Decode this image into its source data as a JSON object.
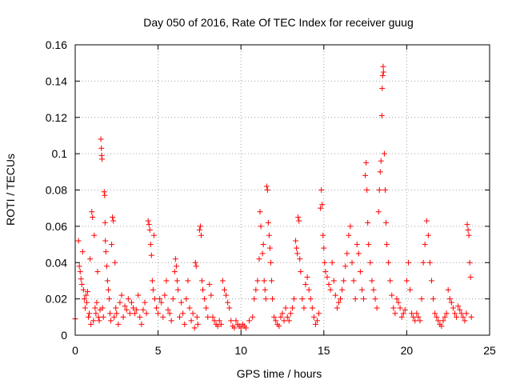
{
  "chart_data": {
    "type": "scatter",
    "title": "Day 050 of 2016, Rate Of TEC Index for receiver guug",
    "xlabel": "GPS time / hours",
    "ylabel": "ROTI / TECUs",
    "xlim": [
      0,
      25
    ],
    "ylim": [
      0,
      0.16
    ],
    "xticks": [
      0,
      5,
      10,
      15,
      20,
      25
    ],
    "xtick_labels": [
      "0",
      "5",
      "10",
      "15",
      "20",
      "25"
    ],
    "yticks": [
      0,
      0.02,
      0.04,
      0.06,
      0.08,
      0.1,
      0.12,
      0.14,
      0.16
    ],
    "ytick_labels": [
      "0",
      "0.02",
      "0.04",
      "0.06",
      "0.08",
      "0.1",
      "0.12",
      "0.14",
      "0.16"
    ],
    "grid": true,
    "marker": "+",
    "color": "#ff0000",
    "series": [
      {
        "name": "ROTI",
        "points": [
          [
            0.0,
            0.009
          ],
          [
            0.2,
            0.052
          ],
          [
            0.25,
            0.038
          ],
          [
            0.3,
            0.035
          ],
          [
            0.35,
            0.031
          ],
          [
            0.4,
            0.028
          ],
          [
            0.45,
            0.046
          ],
          [
            0.5,
            0.025
          ],
          [
            0.55,
            0.02
          ],
          [
            0.6,
            0.015
          ],
          [
            0.65,
            0.022
          ],
          [
            0.7,
            0.018
          ],
          [
            0.75,
            0.024
          ],
          [
            0.8,
            0.01
          ],
          [
            0.85,
            0.012
          ],
          [
            0.9,
            0.042
          ],
          [
            0.95,
            0.006
          ],
          [
            1.0,
            0.068
          ],
          [
            1.05,
            0.065
          ],
          [
            1.1,
            0.008
          ],
          [
            1.15,
            0.055
          ],
          [
            1.2,
            0.015
          ],
          [
            1.25,
            0.012
          ],
          [
            1.3,
            0.018
          ],
          [
            1.35,
            0.035
          ],
          [
            1.4,
            0.01
          ],
          [
            1.45,
            0.008
          ],
          [
            1.5,
            0.014
          ],
          [
            1.55,
            0.108
          ],
          [
            1.58,
            0.103
          ],
          [
            1.6,
            0.099
          ],
          [
            1.62,
            0.097
          ],
          [
            1.65,
            0.015
          ],
          [
            1.7,
            0.01
          ],
          [
            1.75,
            0.079
          ],
          [
            1.78,
            0.077
          ],
          [
            1.8,
            0.062
          ],
          [
            1.82,
            0.052
          ],
          [
            1.85,
            0.046
          ],
          [
            1.9,
            0.038
          ],
          [
            1.95,
            0.03
          ],
          [
            2.0,
            0.025
          ],
          [
            2.05,
            0.02
          ],
          [
            2.1,
            0.012
          ],
          [
            2.15,
            0.008
          ],
          [
            2.2,
            0.05
          ],
          [
            2.25,
            0.065
          ],
          [
            2.3,
            0.063
          ],
          [
            2.35,
            0.01
          ],
          [
            2.4,
            0.04
          ],
          [
            2.45,
            0.015
          ],
          [
            2.5,
            0.012
          ],
          [
            2.6,
            0.006
          ],
          [
            2.7,
            0.018
          ],
          [
            2.8,
            0.022
          ],
          [
            2.9,
            0.01
          ],
          [
            3.0,
            0.016
          ],
          [
            3.1,
            0.014
          ],
          [
            3.2,
            0.02
          ],
          [
            3.3,
            0.012
          ],
          [
            3.4,
            0.018
          ],
          [
            3.5,
            0.015
          ],
          [
            3.6,
            0.012
          ],
          [
            3.7,
            0.014
          ],
          [
            3.8,
            0.022
          ],
          [
            3.9,
            0.01
          ],
          [
            4.0,
            0.006
          ],
          [
            4.1,
            0.014
          ],
          [
            4.2,
            0.018
          ],
          [
            4.3,
            0.012
          ],
          [
            4.4,
            0.063
          ],
          [
            4.45,
            0.061
          ],
          [
            4.5,
            0.058
          ],
          [
            4.55,
            0.05
          ],
          [
            4.6,
            0.044
          ],
          [
            4.65,
            0.03
          ],
          [
            4.7,
            0.025
          ],
          [
            4.75,
            0.055
          ],
          [
            4.8,
            0.02
          ],
          [
            4.9,
            0.015
          ],
          [
            5.0,
            0.012
          ],
          [
            5.1,
            0.02
          ],
          [
            5.2,
            0.018
          ],
          [
            5.3,
            0.01
          ],
          [
            5.4,
            0.022
          ],
          [
            5.5,
            0.03
          ],
          [
            5.6,
            0.014
          ],
          [
            5.7,
            0.012
          ],
          [
            5.8,
            0.008
          ],
          [
            5.9,
            0.02
          ],
          [
            6.0,
            0.035
          ],
          [
            6.05,
            0.042
          ],
          [
            6.1,
            0.038
          ],
          [
            6.15,
            0.03
          ],
          [
            6.2,
            0.025
          ],
          [
            6.3,
            0.01
          ],
          [
            6.4,
            0.018
          ],
          [
            6.5,
            0.012
          ],
          [
            6.6,
            0.006
          ],
          [
            6.7,
            0.02
          ],
          [
            6.8,
            0.03
          ],
          [
            6.9,
            0.015
          ],
          [
            7.0,
            0.008
          ],
          [
            7.1,
            0.012
          ],
          [
            7.2,
            0.004
          ],
          [
            7.25,
            0.04
          ],
          [
            7.3,
            0.038
          ],
          [
            7.35,
            0.01
          ],
          [
            7.4,
            0.006
          ],
          [
            7.5,
            0.058
          ],
          [
            7.55,
            0.06
          ],
          [
            7.6,
            0.055
          ],
          [
            7.65,
            0.03
          ],
          [
            7.7,
            0.025
          ],
          [
            7.8,
            0.02
          ],
          [
            7.9,
            0.015
          ],
          [
            8.0,
            0.01
          ],
          [
            8.1,
            0.028
          ],
          [
            8.2,
            0.022
          ],
          [
            8.3,
            0.01
          ],
          [
            8.4,
            0.008
          ],
          [
            8.5,
            0.006
          ],
          [
            8.6,
            0.005
          ],
          [
            8.7,
            0.008
          ],
          [
            8.8,
            0.006
          ],
          [
            8.9,
            0.03
          ],
          [
            9.0,
            0.025
          ],
          [
            9.1,
            0.022
          ],
          [
            9.2,
            0.018
          ],
          [
            9.3,
            0.015
          ],
          [
            9.4,
            0.008
          ],
          [
            9.5,
            0.005
          ],
          [
            9.6,
            0.004
          ],
          [
            9.7,
            0.008
          ],
          [
            9.8,
            0.006
          ],
          [
            9.9,
            0.005
          ],
          [
            10.0,
            0.004
          ],
          [
            10.1,
            0.006
          ],
          [
            10.2,
            0.005
          ],
          [
            10.3,
            0.004
          ],
          [
            10.5,
            0.008
          ],
          [
            10.7,
            0.01
          ],
          [
            10.8,
            0.02
          ],
          [
            10.9,
            0.025
          ],
          [
            11.0,
            0.03
          ],
          [
            11.1,
            0.042
          ],
          [
            11.15,
            0.068
          ],
          [
            11.2,
            0.06
          ],
          [
            11.3,
            0.045
          ],
          [
            11.35,
            0.05
          ],
          [
            11.4,
            0.03
          ],
          [
            11.45,
            0.025
          ],
          [
            11.5,
            0.02
          ],
          [
            11.55,
            0.082
          ],
          [
            11.6,
            0.08
          ],
          [
            11.65,
            0.062
          ],
          [
            11.7,
            0.055
          ],
          [
            11.75,
            0.048
          ],
          [
            11.8,
            0.04
          ],
          [
            11.85,
            0.03
          ],
          [
            11.9,
            0.02
          ],
          [
            12.0,
            0.01
          ],
          [
            12.1,
            0.008
          ],
          [
            12.2,
            0.006
          ],
          [
            12.3,
            0.005
          ],
          [
            12.4,
            0.01
          ],
          [
            12.5,
            0.012
          ],
          [
            12.6,
            0.008
          ],
          [
            12.7,
            0.015
          ],
          [
            12.8,
            0.01
          ],
          [
            12.9,
            0.008
          ],
          [
            13.0,
            0.012
          ],
          [
            13.1,
            0.015
          ],
          [
            13.2,
            0.02
          ],
          [
            13.3,
            0.052
          ],
          [
            13.35,
            0.048
          ],
          [
            13.4,
            0.045
          ],
          [
            13.45,
            0.065
          ],
          [
            13.5,
            0.063
          ],
          [
            13.55,
            0.042
          ],
          [
            13.6,
            0.035
          ],
          [
            13.7,
            0.02
          ],
          [
            13.8,
            0.015
          ],
          [
            13.9,
            0.028
          ],
          [
            14.0,
            0.032
          ],
          [
            14.1,
            0.025
          ],
          [
            14.2,
            0.02
          ],
          [
            14.3,
            0.015
          ],
          [
            14.4,
            0.01
          ],
          [
            14.5,
            0.006
          ],
          [
            14.6,
            0.008
          ],
          [
            14.7,
            0.012
          ],
          [
            14.8,
            0.07
          ],
          [
            14.85,
            0.08
          ],
          [
            14.9,
            0.072
          ],
          [
            14.95,
            0.055
          ],
          [
            15.0,
            0.048
          ],
          [
            15.05,
            0.04
          ],
          [
            15.1,
            0.035
          ],
          [
            15.2,
            0.032
          ],
          [
            15.3,
            0.028
          ],
          [
            15.4,
            0.025
          ],
          [
            15.5,
            0.04
          ],
          [
            15.6,
            0.03
          ],
          [
            15.7,
            0.022
          ],
          [
            15.8,
            0.015
          ],
          [
            15.9,
            0.018
          ],
          [
            16.0,
            0.02
          ],
          [
            16.1,
            0.025
          ],
          [
            16.2,
            0.03
          ],
          [
            16.3,
            0.038
          ],
          [
            16.4,
            0.045
          ],
          [
            16.5,
            0.055
          ],
          [
            16.6,
            0.06
          ],
          [
            16.7,
            0.04
          ],
          [
            16.8,
            0.03
          ],
          [
            16.9,
            0.02
          ],
          [
            17.0,
            0.05
          ],
          [
            17.1,
            0.045
          ],
          [
            17.2,
            0.035
          ],
          [
            17.3,
            0.025
          ],
          [
            17.4,
            0.02
          ],
          [
            17.5,
            0.088
          ],
          [
            17.55,
            0.095
          ],
          [
            17.6,
            0.08
          ],
          [
            17.65,
            0.062
          ],
          [
            17.7,
            0.05
          ],
          [
            17.8,
            0.04
          ],
          [
            17.9,
            0.03
          ],
          [
            18.0,
            0.025
          ],
          [
            18.1,
            0.02
          ],
          [
            18.2,
            0.015
          ],
          [
            18.3,
            0.068
          ],
          [
            18.35,
            0.08
          ],
          [
            18.4,
            0.09
          ],
          [
            18.45,
            0.096
          ],
          [
            18.5,
            0.121
          ],
          [
            18.52,
            0.136
          ],
          [
            18.55,
            0.143
          ],
          [
            18.58,
            0.148
          ],
          [
            18.6,
            0.145
          ],
          [
            18.65,
            0.1
          ],
          [
            18.7,
            0.08
          ],
          [
            18.75,
            0.062
          ],
          [
            18.8,
            0.05
          ],
          [
            18.9,
            0.04
          ],
          [
            19.0,
            0.03
          ],
          [
            19.1,
            0.022
          ],
          [
            19.2,
            0.015
          ],
          [
            19.3,
            0.012
          ],
          [
            19.4,
            0.02
          ],
          [
            19.5,
            0.018
          ],
          [
            19.6,
            0.015
          ],
          [
            19.7,
            0.01
          ],
          [
            19.8,
            0.012
          ],
          [
            19.9,
            0.014
          ],
          [
            20.0,
            0.03
          ],
          [
            20.1,
            0.04
          ],
          [
            20.2,
            0.025
          ],
          [
            20.3,
            0.012
          ],
          [
            20.4,
            0.01
          ],
          [
            20.5,
            0.008
          ],
          [
            20.6,
            0.012
          ],
          [
            20.7,
            0.01
          ],
          [
            20.8,
            0.008
          ],
          [
            20.9,
            0.02
          ],
          [
            21.0,
            0.04
          ],
          [
            21.1,
            0.05
          ],
          [
            21.2,
            0.063
          ],
          [
            21.3,
            0.055
          ],
          [
            21.4,
            0.04
          ],
          [
            21.5,
            0.03
          ],
          [
            21.6,
            0.02
          ],
          [
            21.7,
            0.012
          ],
          [
            21.8,
            0.01
          ],
          [
            21.9,
            0.008
          ],
          [
            22.0,
            0.006
          ],
          [
            22.1,
            0.005
          ],
          [
            22.2,
            0.008
          ],
          [
            22.3,
            0.01
          ],
          [
            22.4,
            0.012
          ],
          [
            22.5,
            0.025
          ],
          [
            22.6,
            0.02
          ],
          [
            22.7,
            0.018
          ],
          [
            22.8,
            0.015
          ],
          [
            22.9,
            0.012
          ],
          [
            23.0,
            0.01
          ],
          [
            23.1,
            0.016
          ],
          [
            23.2,
            0.014
          ],
          [
            23.3,
            0.012
          ],
          [
            23.4,
            0.01
          ],
          [
            23.5,
            0.008
          ],
          [
            23.6,
            0.012
          ],
          [
            23.65,
            0.061
          ],
          [
            23.7,
            0.058
          ],
          [
            23.75,
            0.055
          ],
          [
            23.8,
            0.04
          ],
          [
            23.85,
            0.032
          ],
          [
            23.9,
            0.01
          ]
        ]
      }
    ]
  }
}
